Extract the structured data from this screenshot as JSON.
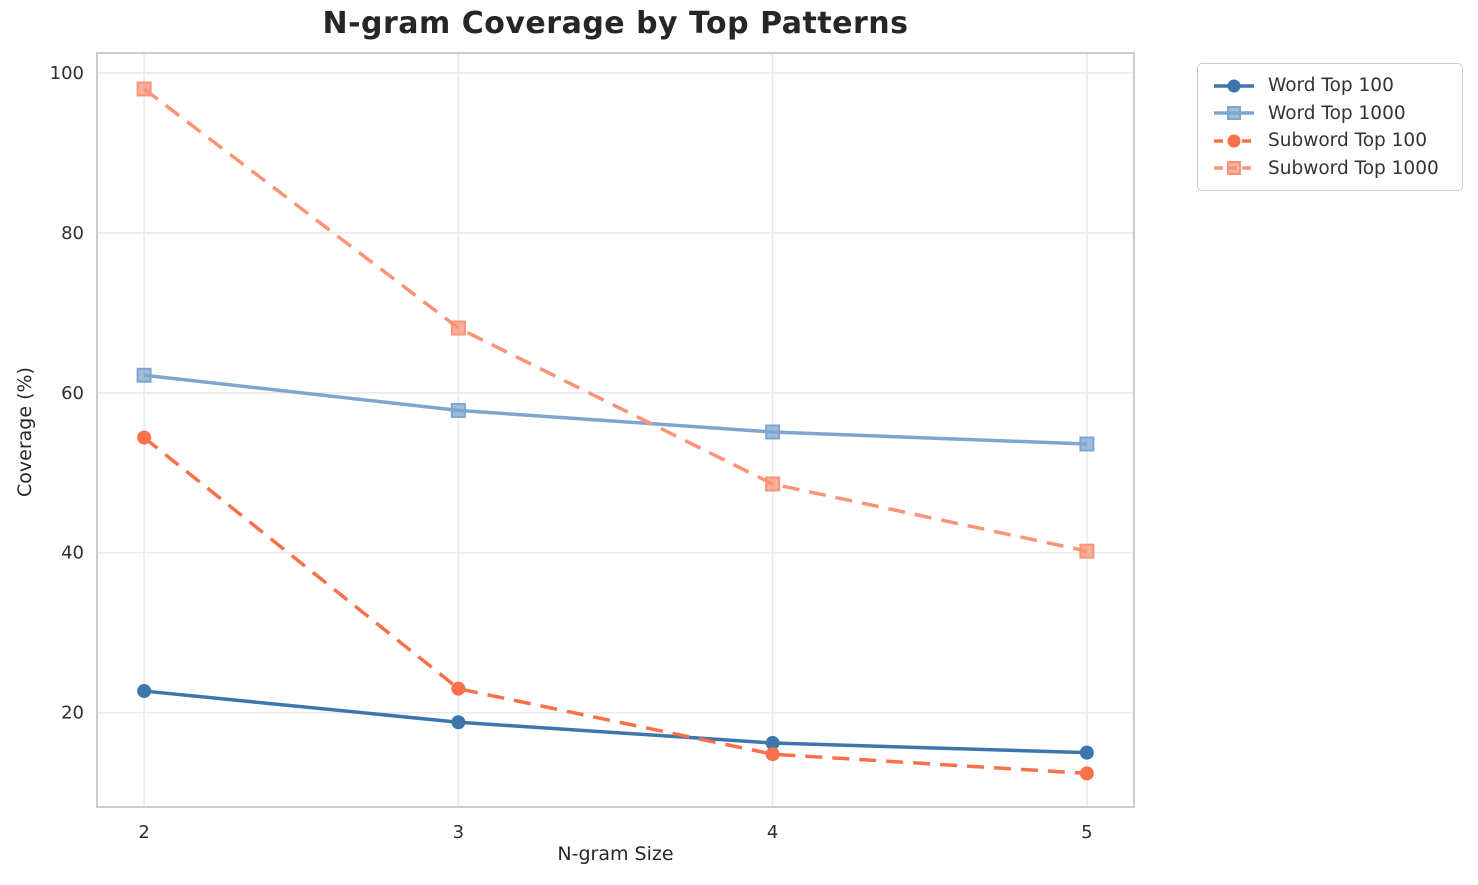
{
  "chart_data": {
    "type": "line",
    "title": "N-gram Coverage by Top Patterns",
    "xlabel": "N-gram Size",
    "ylabel": "Coverage (%)",
    "x": [
      2,
      3,
      4,
      5
    ],
    "xticks": [
      2,
      3,
      4,
      5
    ],
    "yticks": [
      20,
      40,
      60,
      80,
      100
    ],
    "xlim": [
      1.85,
      5.15
    ],
    "ylim": [
      8.2,
      102.5
    ],
    "grid": true,
    "legend_position": "outside-top-right",
    "series": [
      {
        "name": "Word Top 100",
        "values": [
          22.7,
          18.8,
          16.2,
          15.0
        ],
        "color": "#3d76ad",
        "style": "solid",
        "marker": "circle"
      },
      {
        "name": "Word Top 1000",
        "values": [
          62.2,
          57.8,
          55.1,
          53.6
        ],
        "color": "#7da7ce",
        "style": "solid",
        "marker": "square"
      },
      {
        "name": "Subword Top 100",
        "values": [
          54.4,
          23.0,
          14.8,
          12.4
        ],
        "color": "#f8714a",
        "style": "dashed",
        "marker": "circle"
      },
      {
        "name": "Subword Top 1000",
        "values": [
          98.0,
          68.1,
          48.6,
          40.2
        ],
        "color": "#fa9478",
        "style": "dashed",
        "marker": "square"
      }
    ],
    "colors": {
      "grid": "#e9e9ee",
      "spine": "#cccccc",
      "tick_text": "#2e2e2e"
    }
  }
}
